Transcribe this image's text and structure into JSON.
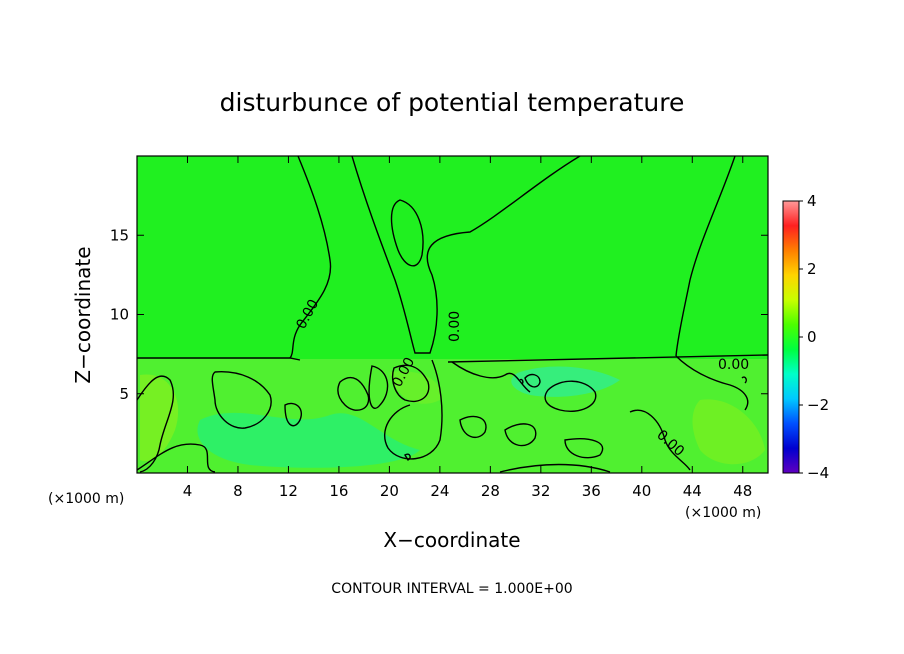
{
  "chart_data": {
    "type": "heatmap",
    "title": "disturbunce of potential temperature",
    "xlabel": "X−coordinate",
    "ylabel": "Z−coordinate",
    "x_unit_left": "(×1000 m)",
    "x_unit_right": "(×1000 m)",
    "xlim": [
      0,
      50
    ],
    "ylim": [
      0,
      20
    ],
    "x_ticks": [
      4,
      8,
      12,
      16,
      20,
      24,
      28,
      32,
      36,
      40,
      44,
      48
    ],
    "y_ticks": [
      5,
      10,
      15
    ],
    "colorbar": {
      "range": [
        -4,
        4
      ],
      "ticks": [
        4,
        2,
        0,
        -2,
        -4
      ],
      "colors": [
        "#ff9999",
        "#ff2020",
        "#ff7f00",
        "#ffd400",
        "#c8ff00",
        "#4cff00",
        "#00ff40",
        "#00ffc8",
        "#00c8ff",
        "#0050ff",
        "#0000d0",
        "#6000c0"
      ]
    },
    "background_color": "#20f020",
    "zero_contour_label": "0.00",
    "contour_interval_text": "CONTOUR INTERVAL = 1.000E+00"
  }
}
